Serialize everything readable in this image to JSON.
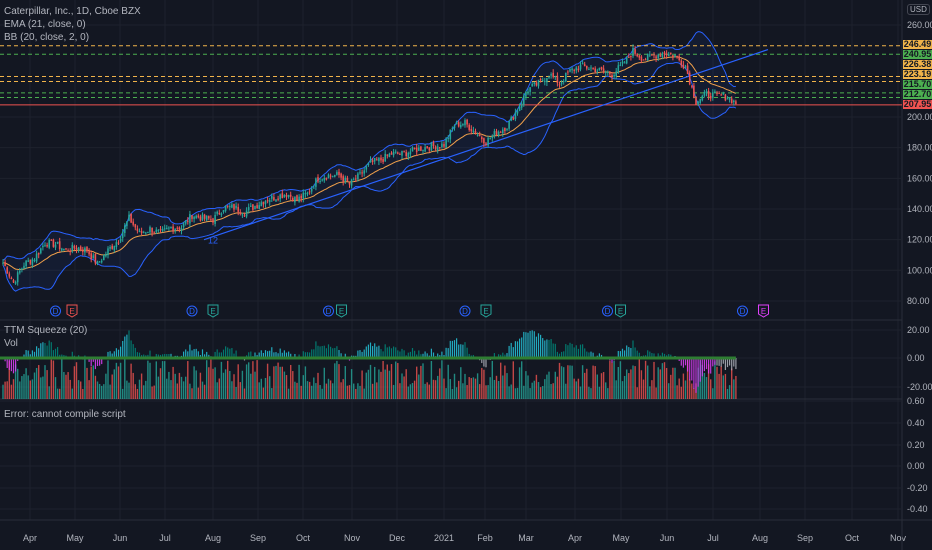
{
  "legend": {
    "title": "Caterpillar, Inc., 1D, Cboe BZX",
    "ema": "EMA (21, close, 0)",
    "bb": "BB (20, close, 2, 0)",
    "squeeze": "TTM Squeeze (20)",
    "vol": "Vol",
    "error": "Error: cannot compile script"
  },
  "currency": "USD",
  "price_tags": [
    {
      "value": "246.49",
      "color": "#f0b34a"
    },
    {
      "value": "240.95",
      "color": "#4caf50"
    },
    {
      "value": "226.38",
      "color": "#f0b34a"
    },
    {
      "value": "223.19",
      "color": "#f0b34a"
    },
    {
      "value": "215.70",
      "color": "#4caf50"
    },
    {
      "value": "212.70",
      "color": "#4caf50"
    },
    {
      "value": "207.95",
      "color": "#ef5350"
    }
  ],
  "trendline_label": "12",
  "events": [
    {
      "type": "D",
      "date": "2020-04-17",
      "color": "#2962ff"
    },
    {
      "type": "E",
      "date": "2020-04-28",
      "color": "#ef5350"
    },
    {
      "type": "D",
      "date": "2020-07-17",
      "color": "#2962ff"
    },
    {
      "type": "E",
      "date": "2020-07-31",
      "color": "#26a69a"
    },
    {
      "type": "D",
      "date": "2020-10-16",
      "color": "#2962ff"
    },
    {
      "type": "E",
      "date": "2020-10-18",
      "color": "#26a69a"
    },
    {
      "type": "D",
      "date": "2021-01-15",
      "color": "#2962ff"
    },
    {
      "type": "E",
      "date": "2021-01-29",
      "color": "#26a69a"
    },
    {
      "type": "D",
      "date": "2021-04-20",
      "color": "#2962ff"
    },
    {
      "type": "E",
      "date": "2021-04-27",
      "color": "#26a69a"
    },
    {
      "type": "D",
      "date": "2021-07-19",
      "color": "#2962ff"
    },
    {
      "type": "E",
      "date": "2021-08-02",
      "color": "#e040fb"
    }
  ],
  "chart_data": {
    "type": "candlestick",
    "title": "Caterpillar, Inc., 1D, Cboe BZX",
    "ylim": [
      75,
      265
    ],
    "y_ticks": [
      "260.00",
      "200.00",
      "180.00",
      "160.00",
      "140.00",
      "120.00",
      "100.00",
      "80.00"
    ],
    "x_ticks": [
      "Apr",
      "May",
      "Jun",
      "Jul",
      "Aug",
      "Sep",
      "Oct",
      "Nov",
      "Dec",
      "2021",
      "Feb",
      "Mar",
      "Apr",
      "May",
      "Jun",
      "Jul",
      "Aug",
      "Sep",
      "Oct",
      "Nov"
    ],
    "squeeze_ticks": [
      "20.00",
      "0.00",
      "-20.00"
    ],
    "error_pane_ticks": [
      "0.60",
      "0.40",
      "0.20",
      "0.00",
      "-0.20",
      "-0.40"
    ],
    "weekly_close": [
      [
        "2020-03-13",
        105
      ],
      [
        "2020-03-20",
        92
      ],
      [
        "2020-03-27",
        104
      ],
      [
        "2020-04-03",
        108
      ],
      [
        "2020-04-10",
        118
      ],
      [
        "2020-04-17",
        117
      ],
      [
        "2020-04-24",
        113
      ],
      [
        "2020-05-01",
        115
      ],
      [
        "2020-05-08",
        113
      ],
      [
        "2020-05-15",
        104
      ],
      [
        "2020-05-22",
        113
      ],
      [
        "2020-05-29",
        120
      ],
      [
        "2020-06-05",
        134
      ],
      [
        "2020-06-12",
        124
      ],
      [
        "2020-06-19",
        127
      ],
      [
        "2020-06-26",
        124
      ],
      [
        "2020-07-03",
        128
      ],
      [
        "2020-07-10",
        128
      ],
      [
        "2020-07-17",
        136
      ],
      [
        "2020-07-24",
        134
      ],
      [
        "2020-07-31",
        133
      ],
      [
        "2020-08-07",
        141
      ],
      [
        "2020-08-14",
        141
      ],
      [
        "2020-08-21",
        138
      ],
      [
        "2020-08-28",
        142
      ],
      [
        "2020-09-04",
        146
      ],
      [
        "2020-09-11",
        148
      ],
      [
        "2020-09-18",
        150
      ],
      [
        "2020-09-25",
        146
      ],
      [
        "2020-10-02",
        150
      ],
      [
        "2020-10-09",
        160
      ],
      [
        "2020-10-16",
        162
      ],
      [
        "2020-10-23",
        162
      ],
      [
        "2020-10-30",
        156
      ],
      [
        "2020-11-06",
        162
      ],
      [
        "2020-11-13",
        170
      ],
      [
        "2020-11-20",
        172
      ],
      [
        "2020-11-27",
        176
      ],
      [
        "2020-12-04",
        176
      ],
      [
        "2020-12-11",
        178
      ],
      [
        "2020-12-18",
        180
      ],
      [
        "2020-12-25",
        181
      ],
      [
        "2021-01-01",
        182
      ],
      [
        "2021-01-08",
        195
      ],
      [
        "2021-01-15",
        196
      ],
      [
        "2021-01-22",
        190
      ],
      [
        "2021-01-29",
        184
      ],
      [
        "2021-02-05",
        190
      ],
      [
        "2021-02-12",
        194
      ],
      [
        "2021-02-19",
        205
      ],
      [
        "2021-02-26",
        218
      ],
      [
        "2021-03-05",
        222
      ],
      [
        "2021-03-12",
        228
      ],
      [
        "2021-03-19",
        222
      ],
      [
        "2021-03-26",
        230
      ],
      [
        "2021-04-02",
        233
      ],
      [
        "2021-04-09",
        232
      ],
      [
        "2021-04-16",
        230
      ],
      [
        "2021-04-23",
        228
      ],
      [
        "2021-04-30",
        234
      ],
      [
        "2021-05-07",
        243
      ],
      [
        "2021-05-14",
        238
      ],
      [
        "2021-05-21",
        240
      ],
      [
        "2021-05-28",
        242
      ],
      [
        "2021-06-04",
        240
      ],
      [
        "2021-06-11",
        233
      ],
      [
        "2021-06-18",
        210
      ],
      [
        "2021-06-25",
        215
      ],
      [
        "2021-07-02",
        214
      ],
      [
        "2021-07-09",
        213
      ],
      [
        "2021-07-16",
        208
      ]
    ],
    "levels": [
      {
        "value": 246.49,
        "color": "#f0b34a",
        "style": "dashed"
      },
      {
        "value": 240.95,
        "color": "#4caf50",
        "style": "dashed"
      },
      {
        "value": 226.38,
        "color": "#f0b34a",
        "style": "dashed"
      },
      {
        "value": 223.19,
        "color": "#f0b34a",
        "style": "dashed"
      },
      {
        "value": 215.7,
        "color": "#4caf50",
        "style": "dashed"
      },
      {
        "value": 212.7,
        "color": "#4caf50",
        "style": "dashed"
      },
      {
        "value": 207.95,
        "color": "#ef5350",
        "style": "solid"
      }
    ],
    "trendline": [
      [
        "2020-07-25",
        120
      ],
      [
        "2021-08-05",
        244
      ]
    ],
    "colors": {
      "up": "#26a69a",
      "down": "#ef5350",
      "ema": "#f0a04b",
      "bb": "#2962ff"
    }
  }
}
